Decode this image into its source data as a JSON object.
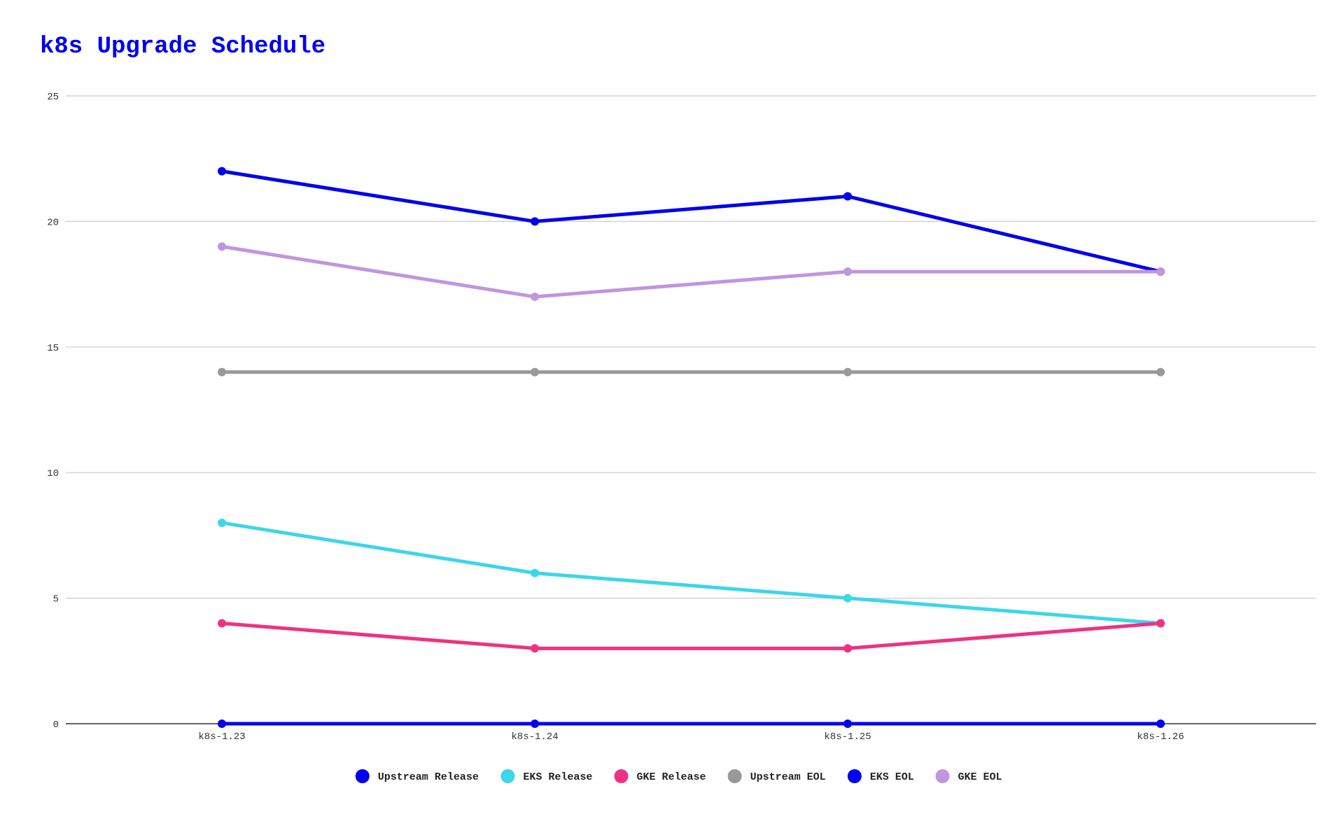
{
  "chart_data": {
    "type": "line",
    "title": "k8s Upgrade Schedule",
    "title_color": "#0000ee",
    "xlabel": "",
    "ylabel": "",
    "categories": [
      "k8s-1.23",
      "k8s-1.24",
      "k8s-1.25",
      "k8s-1.26"
    ],
    "ylim": [
      0,
      25
    ],
    "yticks": [
      0,
      5,
      10,
      15,
      20,
      25
    ],
    "grid": true,
    "legend_position": "bottom",
    "series": [
      {
        "name": "Upstream Release",
        "color": "#0000ee",
        "values": [
          0,
          0,
          0,
          0
        ]
      },
      {
        "name": "EKS Release",
        "color": "#3dd6ea",
        "values": [
          8,
          6,
          5,
          4
        ]
      },
      {
        "name": "GKE Release",
        "color": "#ee3283",
        "values": [
          4,
          3,
          3,
          4
        ]
      },
      {
        "name": "Upstream EOL",
        "color": "#999999",
        "values": [
          14,
          14,
          14,
          14
        ]
      },
      {
        "name": "EKS EOL",
        "color": "#0000ee",
        "values": [
          22,
          20,
          21,
          18
        ]
      },
      {
        "name": "GKE EOL",
        "color": "#c195e0",
        "values": [
          19,
          17,
          18,
          18
        ]
      }
    ]
  }
}
